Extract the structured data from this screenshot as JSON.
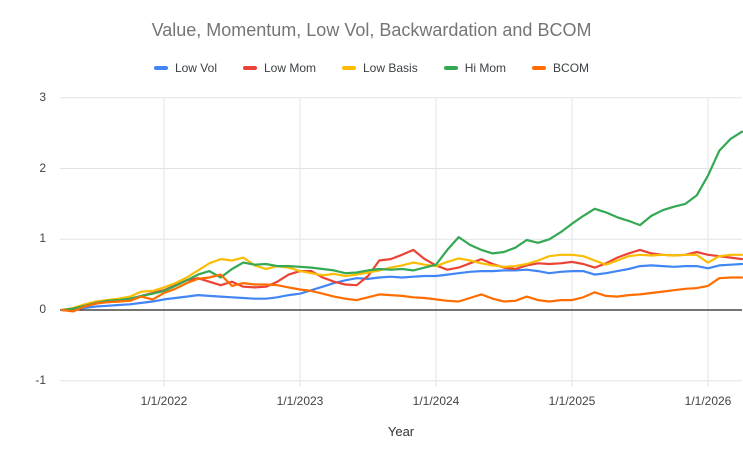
{
  "title": "Value, Momentum, Low Vol, Backwardation and BCOM",
  "x_axis_title": "Year",
  "colors": {
    "background": "#ffffff",
    "title_text": "#757575",
    "legend_text": "#3c4043",
    "axis_text": "#444444",
    "gridline": "#e3e3e3",
    "zero_line": "#212121"
  },
  "legend": [
    {
      "label": "Low Vol",
      "color": "#4285F4"
    },
    {
      "label": "Low Mom",
      "color": "#EA4335"
    },
    {
      "label": "Low Basis",
      "color": "#FBBC04"
    },
    {
      "label": "Hi Mom",
      "color": "#34A853"
    },
    {
      "label": "BCOM",
      "color": "#FF6D01"
    }
  ],
  "chart_data": {
    "type": "line",
    "title": "Value, Momentum, Low Vol, Backwardation and BCOM",
    "xlabel": "Year",
    "ylabel": "",
    "ylim": [
      -1,
      3
    ],
    "y_ticks": [
      3,
      2,
      1,
      0,
      -1
    ],
    "grid": true,
    "legend_position": "top",
    "x_tick_labels": [
      "1/1/2022",
      "1/1/2023",
      "1/1/2024",
      "1/1/2025",
      "1/1/2026"
    ],
    "x_tick_indices": [
      9,
      21,
      33,
      45,
      57
    ],
    "x_label_dates": [
      "4/1/2021",
      "5/1/2021",
      "6/1/2021",
      "7/1/2021",
      "8/1/2021",
      "9/1/2021",
      "10/1/2021",
      "11/1/2021",
      "12/1/2021",
      "1/1/2022",
      "2/1/2022",
      "3/1/2022",
      "4/1/2022",
      "5/1/2022",
      "6/1/2022",
      "7/1/2022",
      "8/1/2022",
      "9/1/2022",
      "10/1/2022",
      "11/1/2022",
      "12/1/2022",
      "1/1/2023",
      "2/1/2023",
      "3/1/2023",
      "4/1/2023",
      "5/1/2023",
      "6/1/2023",
      "7/1/2023",
      "8/1/2023",
      "9/1/2023",
      "10/1/2023",
      "11/1/2023",
      "12/1/2023",
      "1/1/2024",
      "2/1/2024",
      "3/1/2024",
      "4/1/2024",
      "5/1/2024",
      "6/1/2024",
      "7/1/2024",
      "8/1/2024",
      "9/1/2024",
      "10/1/2024",
      "11/1/2024",
      "12/1/2024",
      "1/1/2025",
      "2/1/2025",
      "3/1/2025",
      "4/1/2025",
      "5/1/2025",
      "6/1/2025",
      "7/1/2025",
      "8/1/2025",
      "9/1/2025",
      "10/1/2025",
      "11/1/2025",
      "12/1/2025",
      "1/1/2026",
      "2/1/2026",
      "3/1/2026",
      "4/1/2026"
    ],
    "series": [
      {
        "name": "Low Vol",
        "color": "#4285F4",
        "values": [
          0,
          0.01,
          0.03,
          0.05,
          0.06,
          0.07,
          0.08,
          0.1,
          0.12,
          0.15,
          0.17,
          0.19,
          0.21,
          0.2,
          0.19,
          0.18,
          0.17,
          0.16,
          0.16,
          0.18,
          0.21,
          0.23,
          0.28,
          0.33,
          0.38,
          0.42,
          0.45,
          0.44,
          0.46,
          0.47,
          0.46,
          0.47,
          0.48,
          0.48,
          0.5,
          0.52,
          0.54,
          0.55,
          0.55,
          0.56,
          0.56,
          0.57,
          0.55,
          0.52,
          0.54,
          0.55,
          0.55,
          0.5,
          0.52,
          0.55,
          0.58,
          0.62,
          0.63,
          0.62,
          0.61,
          0.62,
          0.62,
          0.59,
          0.63,
          0.64,
          0.65
        ]
      },
      {
        "name": "Low Mom",
        "color": "#EA4335",
        "values": [
          0,
          -0.01,
          0.06,
          0.1,
          0.11,
          0.12,
          0.14,
          0.2,
          0.24,
          0.28,
          0.35,
          0.42,
          0.45,
          0.4,
          0.35,
          0.4,
          0.33,
          0.32,
          0.33,
          0.4,
          0.5,
          0.55,
          0.55,
          0.46,
          0.4,
          0.36,
          0.35,
          0.48,
          0.7,
          0.72,
          0.78,
          0.85,
          0.72,
          0.63,
          0.57,
          0.6,
          0.66,
          0.72,
          0.65,
          0.6,
          0.58,
          0.63,
          0.66,
          0.65,
          0.66,
          0.68,
          0.65,
          0.6,
          0.66,
          0.74,
          0.8,
          0.85,
          0.8,
          0.78,
          0.77,
          0.78,
          0.82,
          0.78,
          0.76,
          0.74,
          0.72
        ]
      },
      {
        "name": "Low Basis",
        "color": "#FBBC04",
        "values": [
          0,
          0.03,
          0.08,
          0.12,
          0.14,
          0.16,
          0.19,
          0.26,
          0.27,
          0.32,
          0.38,
          0.46,
          0.56,
          0.66,
          0.72,
          0.7,
          0.74,
          0.63,
          0.58,
          0.62,
          0.6,
          0.55,
          0.52,
          0.49,
          0.51,
          0.48,
          0.5,
          0.53,
          0.56,
          0.6,
          0.63,
          0.67,
          0.64,
          0.62,
          0.68,
          0.73,
          0.7,
          0.66,
          0.63,
          0.61,
          0.62,
          0.65,
          0.7,
          0.76,
          0.78,
          0.78,
          0.76,
          0.7,
          0.64,
          0.7,
          0.76,
          0.78,
          0.77,
          0.78,
          0.77,
          0.78,
          0.78,
          0.67,
          0.76,
          0.78,
          0.78
        ]
      },
      {
        "name": "Hi Mom",
        "color": "#34A853",
        "values": [
          0,
          0.02,
          0.06,
          0.1,
          0.13,
          0.14,
          0.16,
          0.2,
          0.23,
          0.27,
          0.34,
          0.42,
          0.5,
          0.55,
          0.46,
          0.58,
          0.67,
          0.64,
          0.65,
          0.62,
          0.62,
          0.61,
          0.6,
          0.58,
          0.56,
          0.52,
          0.53,
          0.56,
          0.58,
          0.57,
          0.58,
          0.56,
          0.6,
          0.64,
          0.85,
          1.03,
          0.92,
          0.85,
          0.8,
          0.82,
          0.88,
          0.99,
          0.95,
          1.0,
          1.1,
          1.22,
          1.33,
          1.43,
          1.38,
          1.31,
          1.26,
          1.2,
          1.33,
          1.41,
          1.46,
          1.5,
          1.62,
          1.9,
          2.25,
          2.42,
          2.52
        ]
      },
      {
        "name": "BCOM",
        "color": "#FF6D01",
        "values": [
          0,
          -0.02,
          0.05,
          0.09,
          0.11,
          0.12,
          0.13,
          0.19,
          0.15,
          0.24,
          0.3,
          0.38,
          0.44,
          0.46,
          0.5,
          0.34,
          0.38,
          0.36,
          0.36,
          0.35,
          0.32,
          0.29,
          0.27,
          0.23,
          0.19,
          0.16,
          0.14,
          0.18,
          0.22,
          0.21,
          0.2,
          0.18,
          0.17,
          0.15,
          0.13,
          0.12,
          0.17,
          0.22,
          0.16,
          0.12,
          0.13,
          0.19,
          0.14,
          0.12,
          0.14,
          0.14,
          0.18,
          0.25,
          0.2,
          0.19,
          0.21,
          0.22,
          0.24,
          0.26,
          0.28,
          0.3,
          0.31,
          0.34,
          0.45,
          0.46,
          0.46
        ]
      }
    ]
  }
}
